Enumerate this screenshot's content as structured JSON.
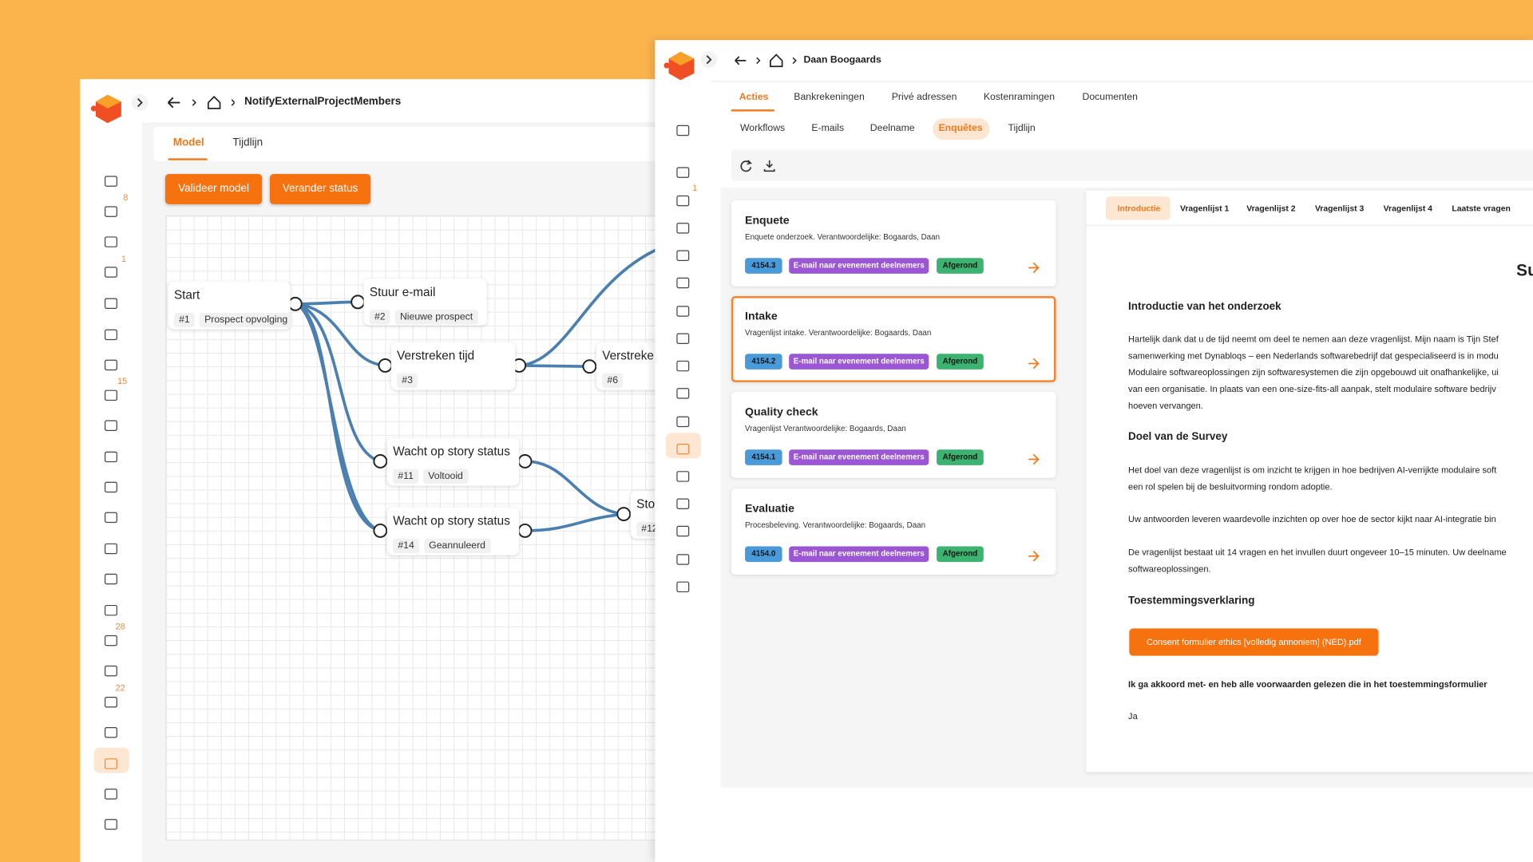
{
  "left_window": {
    "breadcrumb": "NotifyExternalProjectMembers",
    "tabs": [
      "Model",
      "Tijdlijn"
    ],
    "buttons": [
      "Valideer model",
      "Verander status"
    ],
    "sidebar_badges": [
      "8",
      "1",
      "15",
      "28",
      "22"
    ],
    "nodes": [
      {
        "title": "Start",
        "id": "#1",
        "tag": "Prospect opvolging"
      },
      {
        "title": "Stuur e-mail",
        "id": "#2",
        "tag": "Nieuwe prospect"
      },
      {
        "title": "Verstreken tijd",
        "id": "#3"
      },
      {
        "title": "Verstreke",
        "id": "#6"
      },
      {
        "title": "Wacht op story status",
        "id": "#11",
        "tag": "Voltooid"
      },
      {
        "title": "Wacht op story status",
        "id": "#14",
        "tag": "Geannuleerd"
      },
      {
        "title": "Sto",
        "id": "#12"
      }
    ]
  },
  "right_window": {
    "breadcrumb": "Daan Boogaards",
    "sidebar_badges": [
      "1"
    ],
    "tabs": [
      "Acties",
      "Bankrekeningen",
      "Privé adressen",
      "Kostenramingen",
      "Documenten"
    ],
    "subtabs": [
      "Workflows",
      "E-mails",
      "Deelname",
      "Enquêtes",
      "Tijdlijn"
    ],
    "cards": [
      {
        "title": "Enquete",
        "description": "Enquete onderzoek. Verantwoordelijke: Bogaards, Daan",
        "code": "4154.3",
        "tag": "E-mail naar evenement deelnemers",
        "status": "Afgerond"
      },
      {
        "title": "Intake",
        "description": "Vragenlijst intake. Verantwoordelijke: Bogaards, Daan",
        "code": "4154.2",
        "tag": "E-mail naar evenement deelnemers",
        "status": "Afgerond"
      },
      {
        "title": "Quality check",
        "description": "Vragenlijst Verantwoordelijke: Bogaards, Daan",
        "code": "4154.1",
        "tag": "E-mail naar evenement deelnemers",
        "status": "Afgerond"
      },
      {
        "title": "Evaluatie",
        "description": "Procesbeleving. Verantwoordelijke: Bogaards, Daan",
        "code": "4154.0",
        "tag": "E-mail naar evenement deelnemers",
        "status": "Afgerond"
      }
    ],
    "survey_tabs": [
      "Introductie",
      "Vragenlijst 1",
      "Vragenlijst 2",
      "Vragenlijst 3",
      "Vragenlijst 4",
      "Laatste vragen"
    ],
    "survey": {
      "heading": "Su",
      "intro_title": "Introductie van het onderzoek",
      "intro_lines": [
        "Hartelijk dank dat u de tijd neemt om deel te nemen aan deze vragenlijst. Mijn naam is Tijn Stef",
        "samenwerking met Dynabloqs – een Nederlands softwarebedrijf dat gespecialiseerd is in modu",
        "Modulaire softwareoplossingen zijn softwaresystemen die zijn opgebouwd uit onafhankelijke, ui",
        "van een organisatie. In plaats van een one-size-fits-all aanpak, stelt modulaire software bedrijv",
        "hoeven vervangen."
      ],
      "goal_title": "Doel van de Survey",
      "goal_lines": [
        "Het doel van deze vragenlijst is om inzicht te krijgen in hoe bedrijven AI-verrijkte modulaire soft",
        "een rol spelen bij de besluitvorming rondom adoptie."
      ],
      "value_lines": [
        "Uw antwoorden leveren waardevolle inzichten op over hoe de sector kijkt naar AI-integratie bin"
      ],
      "duration_lines": [
        "De vragenlijst bestaat uit 14 vragen en het invullen duurt ongeveer 10–15 minuten. Uw deelname",
        "softwareoplossingen."
      ],
      "consent_title": "Toestemmingsverklaring",
      "consent_button": "Consent formulier ethics [volledig annoniem] (NED).pdf",
      "agreement": "Ik ga akkoord met- en heb alle voorwaarden gelezen die in het toestemmingsformulier",
      "answer": "Ja"
    }
  }
}
